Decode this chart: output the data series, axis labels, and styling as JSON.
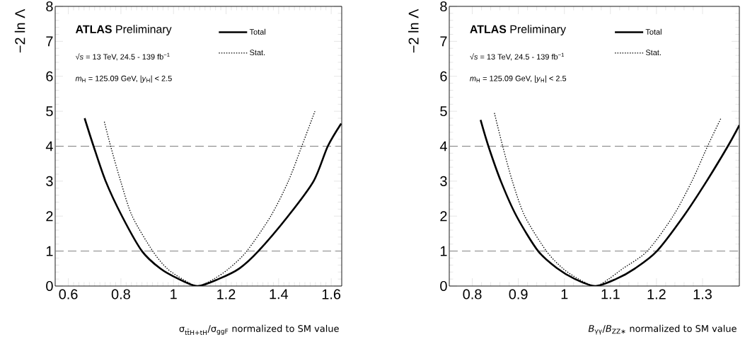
{
  "chart_data": [
    {
      "type": "line",
      "xlabel": "σ$_{tt̄H+tH}$/σ$_{ggF}$ normalized to SM value",
      "ylabel": "−2 ln Λ",
      "annotations": [
        "**ATLAS** Preliminary",
        "√*s* = 13 TeV, 24.5 - 139 fb$^{−1}$",
        "*m*$_{H}$ = 125.09 GeV, |*y*$_{H}$| < 2.5"
      ],
      "xlim": [
        0.55,
        1.64
      ],
      "xticks": [
        0.6,
        0.8,
        1,
        1.2,
        1.4,
        1.6
      ],
      "ylim": [
        0,
        8
      ],
      "yticks": [
        0,
        1,
        2,
        3,
        4,
        5,
        6,
        7,
        8
      ],
      "legend": "top right",
      "ref_lines": [
        {
          "axis": "y",
          "value": 1,
          "color": "#808080",
          "line_style": "dashed"
        },
        {
          "axis": "y",
          "value": 4,
          "color": "#808080",
          "line_style": "dashed"
        }
      ],
      "series": [
        {
          "name": "Total",
          "color": "#000000",
          "line_style": "solid",
          "x": [
            0.662,
            0.696,
            0.742,
            0.804,
            0.88,
            0.95,
            1.02,
            1.091,
            1.171,
            1.25,
            1.323,
            1.436,
            1.533,
            1.587,
            1.638
          ],
          "values": [
            4.8,
            4.0,
            3.0,
            2.0,
            1.0,
            0.5,
            0.2,
            0.0,
            0.2,
            0.5,
            1.0,
            2.0,
            3.0,
            4.0,
            4.65
          ]
        },
        {
          "name": "Stat.",
          "color": "#000000",
          "line_style": "dotted",
          "x": [
            0.737,
            0.761,
            0.799,
            0.843,
            0.921,
            0.976,
            1.034,
            1.091,
            1.153,
            1.211,
            1.279,
            1.37,
            1.437,
            1.488,
            1.538
          ],
          "values": [
            4.7,
            4.0,
            3.0,
            2.0,
            1.0,
            0.5,
            0.2,
            0.0,
            0.2,
            0.5,
            1.0,
            2.0,
            3.0,
            4.0,
            5.0
          ]
        }
      ]
    },
    {
      "type": "line",
      "xlabel": "*B*$_{γγ}$/*B*$_{ZZ∗}$ normalized to SM value",
      "ylabel": "−2 ln Λ",
      "annotations": [
        "**ATLAS** Preliminary",
        "√*s* = 13 TeV, 24.5 - 139 fb$^{−1}$",
        "*m*$_{H}$ = 125.09 GeV, |*y*$_{H}$| < 2.5"
      ],
      "xlim": [
        0.75,
        1.38
      ],
      "xticks": [
        0.8,
        0.9,
        1,
        1.1,
        1.2,
        1.3
      ],
      "ylim": [
        0,
        8
      ],
      "yticks": [
        0,
        1,
        2,
        3,
        4,
        5,
        6,
        7,
        8
      ],
      "legend": "top right",
      "ref_lines": [
        {
          "axis": "y",
          "value": 1,
          "color": "#808080",
          "line_style": "dashed"
        },
        {
          "axis": "y",
          "value": 4,
          "color": "#808080",
          "line_style": "dashed"
        }
      ],
      "series": [
        {
          "name": "Total",
          "color": "#000000",
          "line_style": "solid",
          "x": [
            0.818,
            0.835,
            0.862,
            0.896,
            0.943,
            0.985,
            1.023,
            1.067,
            1.112,
            1.153,
            1.201,
            1.259,
            1.309,
            1.355,
            1.38
          ],
          "values": [
            4.75,
            4.0,
            3.0,
            2.0,
            1.0,
            0.5,
            0.2,
            0.0,
            0.2,
            0.5,
            1.0,
            2.0,
            3.0,
            4.0,
            4.6
          ]
        },
        {
          "name": "Stat.",
          "color": "#000000",
          "line_style": "dotted",
          "x": [
            0.848,
            0.866,
            0.887,
            0.914,
            0.961,
            0.997,
            1.031,
            1.067,
            1.096,
            1.127,
            1.18,
            1.236,
            1.277,
            1.311,
            1.34
          ],
          "values": [
            4.95,
            4.0,
            3.0,
            2.0,
            1.0,
            0.5,
            0.2,
            0.0,
            0.2,
            0.5,
            1.0,
            2.0,
            3.0,
            4.0,
            4.8
          ]
        }
      ]
    }
  ]
}
